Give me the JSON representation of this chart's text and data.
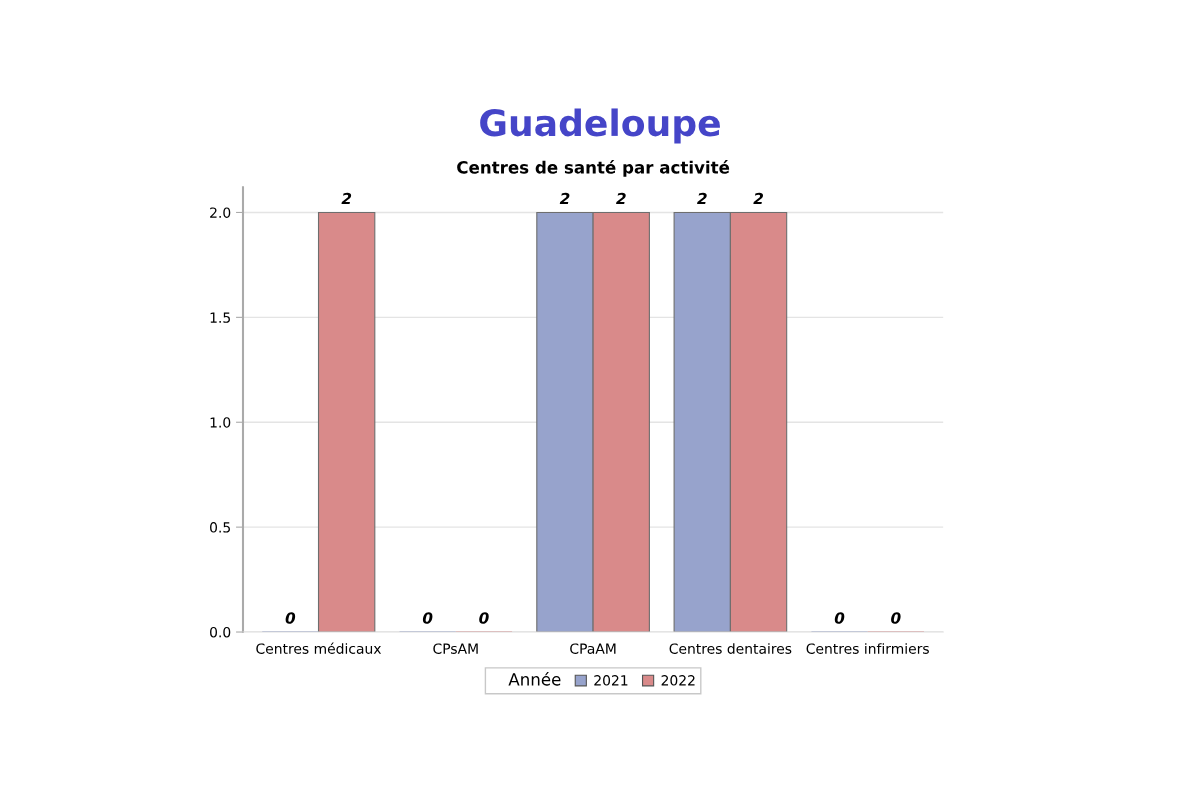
{
  "chart_data": {
    "type": "bar",
    "title": "Guadeloupe",
    "subtitle": "Centres de santé par activité",
    "categories": [
      "Centres médicaux",
      "CPsAM",
      "CPaAM",
      "Centres dentaires",
      "Centres infirmiers"
    ],
    "series": [
      {
        "name": "2021",
        "color": "#97a3cc",
        "values": [
          0,
          0,
          2,
          2,
          0
        ]
      },
      {
        "name": "2022",
        "color": "#d98a8a",
        "values": [
          2,
          0,
          2,
          2,
          0
        ]
      }
    ],
    "legend_title": "Année",
    "legend": "bottom",
    "ylim": [
      0,
      2.12
    ],
    "yticks": [
      {
        "value": 0,
        "label": "0.0"
      },
      {
        "value": 0.5,
        "label": "0.5"
      },
      {
        "value": 1,
        "label": "1.0"
      },
      {
        "value": 1.5,
        "label": "1.5"
      },
      {
        "value": 2,
        "label": "2.0"
      }
    ],
    "grid": "y",
    "data_labels": true
  }
}
